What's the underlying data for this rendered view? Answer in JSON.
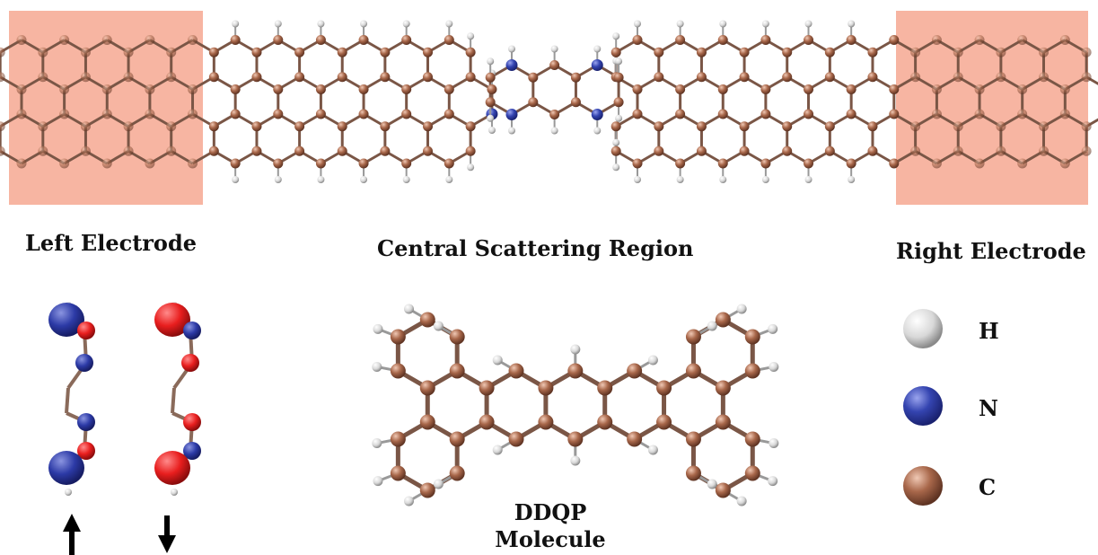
{
  "labels": {
    "left_electrode": "Left Electrode",
    "central_region": "Central Scattering Region",
    "right_electrode": "Right Electrode",
    "molecule_line1": "DDQP",
    "molecule_line2": "Molecule"
  },
  "legend": [
    {
      "element": "H",
      "color": "#e8e8e8"
    },
    {
      "element": "N",
      "color": "#3a4bb0"
    },
    {
      "element": "C",
      "color": "#a8674a"
    }
  ],
  "colors": {
    "electrode_shade": "#f7b5a2",
    "bond": "#8a6a5a",
    "carbon": "#9a5e46",
    "nitrogen": "#2f3fae",
    "hydrogen": "#dcdcdc",
    "orbital_red": "#e81e1e",
    "orbital_blue": "#2c3aa6"
  }
}
